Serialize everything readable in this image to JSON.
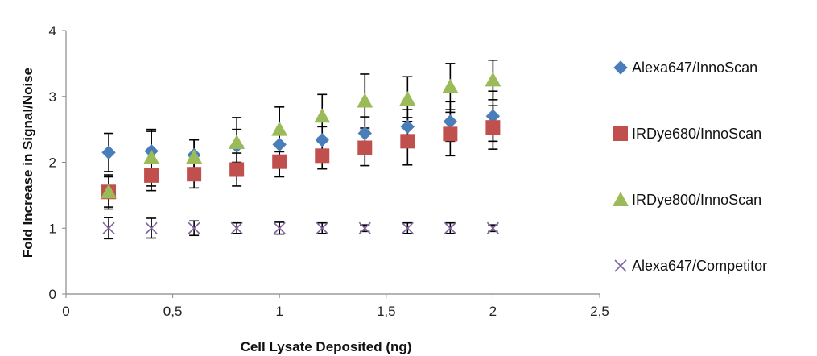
{
  "chart_data": {
    "type": "scatter",
    "title": "",
    "xlabel": "Cell Lysate Deposited (ng)",
    "ylabel": "Fold Increase in  Signal/Noise",
    "xlim": [
      0,
      2.5
    ],
    "ylim": [
      0,
      4
    ],
    "x_ticks": [
      "0",
      "0,5",
      "1",
      "1,5",
      "2",
      "2,5"
    ],
    "y_ticks": [
      "0",
      "1",
      "2",
      "3",
      "4"
    ],
    "grid": false,
    "legend_position": "right",
    "x": [
      0.2,
      0.4,
      0.6,
      0.8,
      1.0,
      1.2,
      1.4,
      1.6,
      1.8,
      2.0
    ],
    "series": [
      {
        "name": "Alexa647/InnoScan",
        "marker": "diamond",
        "color": "#4a7ebb",
        "values": [
          2.15,
          2.17,
          2.11,
          2.25,
          2.27,
          2.34,
          2.44,
          2.54,
          2.62,
          2.7
        ],
        "errors": [
          0.29,
          0.3,
          0.23,
          0.25,
          0.2,
          0.2,
          0.25,
          0.26,
          0.3,
          0.38
        ]
      },
      {
        "name": "IRDye680/InnoScan",
        "marker": "square",
        "color": "#c0504d",
        "values": [
          1.55,
          1.8,
          1.82,
          1.89,
          2.01,
          2.1,
          2.22,
          2.32,
          2.43,
          2.53
        ],
        "errors": [
          0.26,
          0.23,
          0.21,
          0.25,
          0.23,
          0.2,
          0.27,
          0.36,
          0.33,
          0.33
        ]
      },
      {
        "name": "IRDye800/InnoScan",
        "marker": "triangle",
        "color": "#9bbb59",
        "values": [
          1.55,
          2.07,
          2.08,
          2.3,
          2.5,
          2.7,
          2.93,
          2.96,
          3.15,
          3.25
        ],
        "errors": [
          0.23,
          0.43,
          0.27,
          0.38,
          0.34,
          0.33,
          0.41,
          0.34,
          0.35,
          0.3
        ]
      },
      {
        "name": "Alexa647/Competitor",
        "marker": "x",
        "color": "#8064a2",
        "values": [
          1.0,
          1.0,
          1.0,
          1.0,
          1.0,
          1.0,
          1.0,
          1.0,
          1.0,
          1.0
        ],
        "errors": [
          0.16,
          0.15,
          0.11,
          0.08,
          0.09,
          0.08,
          0.05,
          0.08,
          0.08,
          0.05
        ]
      }
    ]
  }
}
